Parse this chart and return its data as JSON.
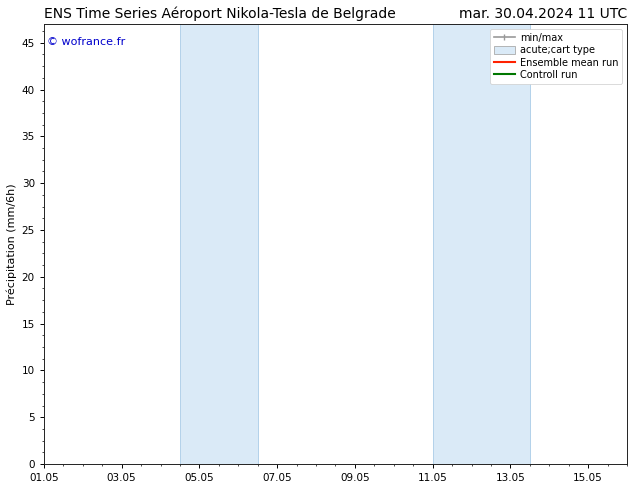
{
  "title_left": "ENS Time Series Aéroport Nikola-Tesla de Belgrade",
  "title_right": "mar. 30.04.2024 11 UTC",
  "ylabel": "Précipitation (mm/6h)",
  "ylim": [
    0,
    47
  ],
  "yticks": [
    0,
    5,
    10,
    15,
    20,
    25,
    30,
    35,
    40,
    45
  ],
  "xtick_labels": [
    "01.05",
    "03.05",
    "05.05",
    "07.05",
    "09.05",
    "11.05",
    "13.05",
    "15.05"
  ],
  "xtick_positions": [
    0,
    2,
    4,
    6,
    8,
    10,
    12,
    14
  ],
  "xlim": [
    0,
    15
  ],
  "shade_bands": [
    {
      "x_start": 3.5,
      "x_end": 5.5
    },
    {
      "x_start": 10.0,
      "x_end": 12.5
    }
  ],
  "shade_color": "#daeaf7",
  "shade_edge_color": "#aacce8",
  "background_color": "#ffffff",
  "watermark": "© wofrance.fr",
  "watermark_color": "#0000cc",
  "title_fontsize": 10,
  "axis_fontsize": 8,
  "tick_fontsize": 7.5,
  "legend_fontsize": 7
}
